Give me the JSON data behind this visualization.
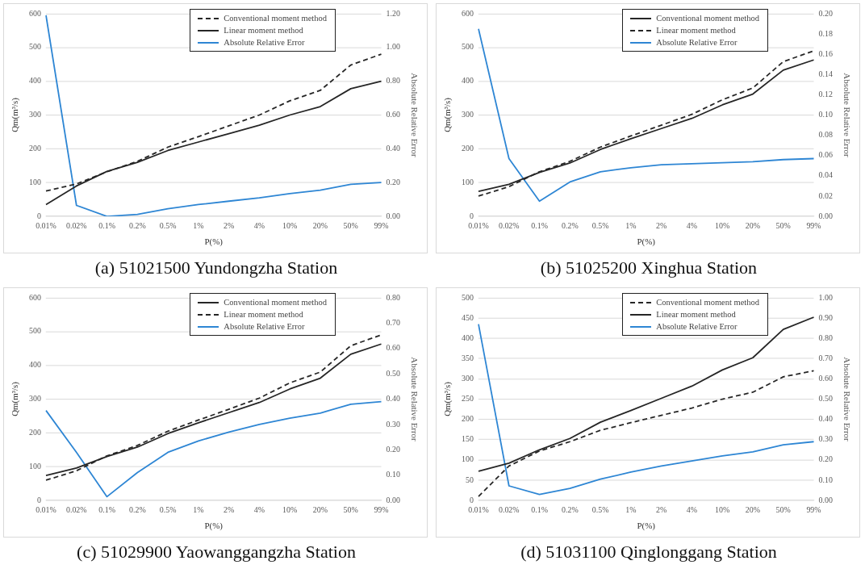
{
  "chart_data": [
    {
      "type": "line",
      "title": "(a) 51021500 Yundongzha Station",
      "xlabel": "P(%)",
      "ylabel": "Qm(m³/s)",
      "y2label": "Absolute Relative Error",
      "categories": [
        "0.01%",
        "0.02%",
        "0.1%",
        "0.2%",
        "0.5%",
        "1%",
        "2%",
        "4%",
        "10%",
        "20%",
        "50%",
        "99%"
      ],
      "series": [
        {
          "name": "Conventional moment method",
          "color": "#262626",
          "line_style": "dashed",
          "values": [
            75,
            96,
            132,
            163,
            205,
            236,
            268,
            300,
            342,
            373,
            448,
            480
          ]
        },
        {
          "name": "Linear moment method",
          "color": "#262626",
          "line_style": "solid",
          "values": [
            35,
            90,
            133,
            160,
            195,
            220,
            245,
            270,
            300,
            325,
            378,
            400
          ]
        },
        {
          "name": "Absolute Relative Error",
          "color": "#2e86d4",
          "line_style": "solid",
          "axis": "y2",
          "values": [
            1.19,
            0.065,
            0.0,
            0.012,
            0.045,
            0.07,
            0.09,
            0.11,
            0.135,
            0.155,
            0.19,
            0.2
          ]
        }
      ],
      "ylim": [
        0,
        600
      ],
      "yticks": [
        0,
        100,
        200,
        300,
        400,
        500,
        600
      ],
      "y2lim": [
        0,
        1.2
      ],
      "y2ticks": [
        {
          "value": 0,
          "label": "0.00"
        },
        {
          "value": 0.2,
          "label": "0.20"
        },
        {
          "value": 0.4,
          "label": "0.40"
        },
        {
          "value": 0.6,
          "label": "0.60"
        },
        {
          "value": 0.8,
          "label": "0.80"
        },
        {
          "value": 1.0,
          "label": "1.00"
        },
        {
          "value": 1.2,
          "label": "1.20"
        }
      ],
      "grid": "y",
      "legend": "top right",
      "marker": "none"
    },
    {
      "type": "line",
      "title": "(b) 51025200 Xinghua Station",
      "xlabel": "P(%)",
      "ylabel": "Qm(m³/s)",
      "y2label": "Absolute Relative Error",
      "categories": [
        "0.01%",
        "0.02%",
        "0.1%",
        "0.2%",
        "0.5%",
        "1%",
        "2%",
        "4%",
        "10%",
        "20%",
        "50%",
        "99%"
      ],
      "series": [
        {
          "name": "Conventional moment method",
          "color": "#262626",
          "line_style": "solid",
          "values": [
            74,
            95,
            130,
            158,
            198,
            230,
            260,
            290,
            330,
            362,
            433,
            463
          ]
        },
        {
          "name": "Linear moment method",
          "color": "#262626",
          "line_style": "dashed",
          "values": [
            60,
            88,
            132,
            163,
            205,
            238,
            270,
            302,
            345,
            380,
            458,
            490
          ]
        },
        {
          "name": "Absolute Relative Error",
          "color": "#2e86d4",
          "line_style": "solid",
          "axis": "y2",
          "values": [
            0.185,
            0.057,
            0.015,
            0.034,
            0.044,
            0.048,
            0.051,
            0.052,
            0.053,
            0.054,
            0.056,
            0.057
          ]
        }
      ],
      "ylim": [
        0,
        600
      ],
      "yticks": [
        0,
        100,
        200,
        300,
        400,
        500,
        600
      ],
      "y2lim": [
        0,
        0.2
      ],
      "y2ticks": [
        {
          "value": 0,
          "label": "0.00"
        },
        {
          "value": 0.02,
          "label": "0.02"
        },
        {
          "value": 0.04,
          "label": "0.04"
        },
        {
          "value": 0.06,
          "label": "0.06"
        },
        {
          "value": 0.08,
          "label": "0.08"
        },
        {
          "value": 0.1,
          "label": "0.10"
        },
        {
          "value": 0.12,
          "label": "0.12"
        },
        {
          "value": 0.14,
          "label": "0.14"
        },
        {
          "value": 0.16,
          "label": "0.16"
        },
        {
          "value": 0.18,
          "label": "0.18"
        },
        {
          "value": 0.2,
          "label": "0.20"
        }
      ],
      "grid": "y",
      "legend": "top right",
      "marker": "none"
    },
    {
      "type": "line",
      "title": "(c) 51029900 Yaowanggangzha Station",
      "xlabel": "P(%)",
      "ylabel": "Qm(m³/s)",
      "y2label": "Absolute Relative Error",
      "categories": [
        "0.01%",
        "0.02%",
        "0.1%",
        "0.2%",
        "0.5%",
        "1%",
        "2%",
        "4%",
        "10%",
        "20%",
        "50%",
        "99%"
      ],
      "series": [
        {
          "name": "Conventional moment method",
          "color": "#262626",
          "line_style": "solid",
          "values": [
            74,
            96,
            130,
            158,
            198,
            230,
            260,
            290,
            330,
            362,
            433,
            463
          ]
        },
        {
          "name": "Linear moment method",
          "color": "#262626",
          "line_style": "dashed",
          "values": [
            60,
            88,
            132,
            163,
            205,
            238,
            270,
            303,
            348,
            380,
            458,
            490
          ]
        },
        {
          "name": "Absolute Relative Error",
          "color": "#2e86d4",
          "line_style": "solid",
          "axis": "y2",
          "values": [
            0.355,
            0.19,
            0.015,
            0.11,
            0.19,
            0.235,
            0.27,
            0.3,
            0.325,
            0.345,
            0.38,
            0.39
          ]
        }
      ],
      "ylim": [
        0,
        600
      ],
      "yticks": [
        0,
        100,
        200,
        300,
        400,
        500,
        600
      ],
      "y2lim": [
        0,
        0.8
      ],
      "y2ticks": [
        {
          "value": 0,
          "label": "0.00"
        },
        {
          "value": 0.1,
          "label": "0.10"
        },
        {
          "value": 0.2,
          "label": "0.20"
        },
        {
          "value": 0.3,
          "label": "0.30"
        },
        {
          "value": 0.4,
          "label": "0.40"
        },
        {
          "value": 0.5,
          "label": "0.50"
        },
        {
          "value": 0.6,
          "label": "0.60"
        },
        {
          "value": 0.7,
          "label": "0.70"
        },
        {
          "value": 0.8,
          "label": "0.80"
        }
      ],
      "grid": "y",
      "legend": "top right",
      "marker": "none"
    },
    {
      "type": "line",
      "title": "(d) 51031100 Qinglonggang Station",
      "xlabel": "P(%)",
      "ylabel": "Qm(m³/s)",
      "y2label": "Absolute Relative Error",
      "categories": [
        "0.01%",
        "0.02%",
        "0.1%",
        "0.2%",
        "0.5%",
        "1%",
        "2%",
        "4%",
        "10%",
        "20%",
        "50%",
        "99%"
      ],
      "series": [
        {
          "name": "Conventional moment method",
          "color": "#262626",
          "line_style": "dashed",
          "values": [
            10,
            85,
            122,
            145,
            173,
            192,
            210,
            228,
            250,
            267,
            305,
            320
          ]
        },
        {
          "name": "Linear moment method",
          "color": "#262626",
          "line_style": "solid",
          "values": [
            72,
            92,
            125,
            153,
            193,
            222,
            252,
            282,
            322,
            352,
            422,
            452
          ]
        },
        {
          "name": "Absolute Relative Error",
          "color": "#2e86d4",
          "line_style": "solid",
          "axis": "y2",
          "values": [
            0.87,
            0.072,
            0.03,
            0.06,
            0.105,
            0.14,
            0.17,
            0.195,
            0.22,
            0.24,
            0.275,
            0.29
          ]
        }
      ],
      "ylim": [
        0,
        500
      ],
      "yticks": [
        0,
        50,
        100,
        150,
        200,
        250,
        300,
        350,
        400,
        450,
        500
      ],
      "y2lim": [
        0,
        1.0
      ],
      "y2ticks": [
        {
          "value": 0,
          "label": "0.00"
        },
        {
          "value": 0.1,
          "label": "0.10"
        },
        {
          "value": 0.2,
          "label": "0.20"
        },
        {
          "value": 0.3,
          "label": "0.30"
        },
        {
          "value": 0.4,
          "label": "0.40"
        },
        {
          "value": 0.5,
          "label": "0.50"
        },
        {
          "value": 0.6,
          "label": "0.60"
        },
        {
          "value": 0.7,
          "label": "0.70"
        },
        {
          "value": 0.8,
          "label": "0.80"
        },
        {
          "value": 0.9,
          "label": "0.90"
        },
        {
          "value": 1.0,
          "label": "1.00"
        }
      ],
      "grid": "y",
      "legend": "top right",
      "marker": "none"
    }
  ]
}
